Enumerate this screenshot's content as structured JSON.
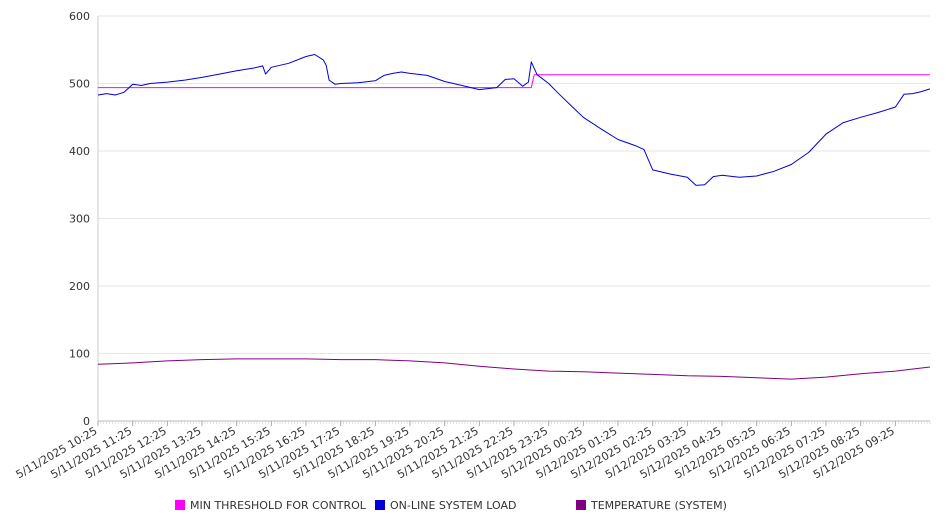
{
  "chart_data": {
    "type": "line",
    "title": "",
    "xlabel": "",
    "ylabel": "",
    "ylim": [
      0,
      600
    ],
    "yticks": [
      0,
      100,
      200,
      300,
      400,
      500,
      600
    ],
    "grid": true,
    "legend_position": "bottom",
    "x_tick_labels": [
      "5/11/2025 10:25",
      "5/11/2025 11:25",
      "5/11/2025 12:25",
      "5/11/2025 13:25",
      "5/11/2025 14:25",
      "5/11/2025 15:25",
      "5/11/2025 16:25",
      "5/11/2025 17:25",
      "5/11/2025 18:25",
      "5/11/2025 19:25",
      "5/11/2025 20:25",
      "5/11/2025 21:25",
      "5/11/2025 22:25",
      "5/11/2025 23:25",
      "5/12/2025 00:25",
      "5/12/2025 01:25",
      "5/12/2025 02:25",
      "5/12/2025 03:25",
      "5/12/2025 04:25",
      "5/12/2025 05:25",
      "5/12/2025 06:25",
      "5/12/2025 07:25",
      "5/12/2025 08:25",
      "5/12/2025 09:25"
    ],
    "series": [
      {
        "name": "MIN THRESHOLD FOR CONTROL",
        "color": "#ff00ff",
        "points": [
          {
            "t": "5/11/2025 10:25",
            "v": 494
          },
          {
            "t": "5/11/2025 11:25",
            "v": 494
          },
          {
            "t": "5/11/2025 12:25",
            "v": 494
          },
          {
            "t": "5/11/2025 13:25",
            "v": 494
          },
          {
            "t": "5/11/2025 14:25",
            "v": 494
          },
          {
            "t": "5/11/2025 15:25",
            "v": 494
          },
          {
            "t": "5/11/2025 16:25",
            "v": 494
          },
          {
            "t": "5/11/2025 17:25",
            "v": 494
          },
          {
            "t": "5/11/2025 18:25",
            "v": 494
          },
          {
            "t": "5/11/2025 19:25",
            "v": 494
          },
          {
            "t": "5/11/2025 20:25",
            "v": 494
          },
          {
            "t": "5/11/2025 21:25",
            "v": 494
          },
          {
            "t": "5/11/2025 22:25",
            "v": 494
          },
          {
            "t": "5/11/2025 22:55",
            "v": 494
          },
          {
            "t": "5/11/2025 23:00",
            "v": 513
          },
          {
            "t": "5/11/2025 23:25",
            "v": 513
          },
          {
            "t": "5/12/2025 00:25",
            "v": 513
          },
          {
            "t": "5/12/2025 01:25",
            "v": 513
          },
          {
            "t": "5/12/2025 02:25",
            "v": 513
          },
          {
            "t": "5/12/2025 03:25",
            "v": 513
          },
          {
            "t": "5/12/2025 04:25",
            "v": 513
          },
          {
            "t": "5/12/2025 05:25",
            "v": 513
          },
          {
            "t": "5/12/2025 06:25",
            "v": 513
          },
          {
            "t": "5/12/2025 07:25",
            "v": 513
          },
          {
            "t": "5/12/2025 08:25",
            "v": 513
          },
          {
            "t": "5/12/2025 09:25",
            "v": 513
          },
          {
            "t": "5/12/2025 10:25",
            "v": 513
          }
        ]
      },
      {
        "name": "ON-LINE SYSTEM LOAD",
        "color": "#0000dd",
        "points": [
          {
            "t": "5/11/2025 10:25",
            "v": 483
          },
          {
            "t": "5/11/2025 10:40",
            "v": 485
          },
          {
            "t": "5/11/2025 10:55",
            "v": 483
          },
          {
            "t": "5/11/2025 11:10",
            "v": 487
          },
          {
            "t": "5/11/2025 11:25",
            "v": 499
          },
          {
            "t": "5/11/2025 11:40",
            "v": 497
          },
          {
            "t": "5/11/2025 11:55",
            "v": 500
          },
          {
            "t": "5/11/2025 12:25",
            "v": 502
          },
          {
            "t": "5/11/2025 12:55",
            "v": 505
          },
          {
            "t": "5/11/2025 13:25",
            "v": 509
          },
          {
            "t": "5/11/2025 13:55",
            "v": 514
          },
          {
            "t": "5/11/2025 14:25",
            "v": 519
          },
          {
            "t": "5/11/2025 14:55",
            "v": 523
          },
          {
            "t": "5/11/2025 15:10",
            "v": 526
          },
          {
            "t": "5/11/2025 15:15",
            "v": 514
          },
          {
            "t": "5/11/2025 15:25",
            "v": 524
          },
          {
            "t": "5/11/2025 15:55",
            "v": 530
          },
          {
            "t": "5/11/2025 16:25",
            "v": 540
          },
          {
            "t": "5/11/2025 16:40",
            "v": 543
          },
          {
            "t": "5/11/2025 16:55",
            "v": 535
          },
          {
            "t": "5/11/2025 17:00",
            "v": 527
          },
          {
            "t": "5/11/2025 17:05",
            "v": 505
          },
          {
            "t": "5/11/2025 17:15",
            "v": 499
          },
          {
            "t": "5/11/2025 17:25",
            "v": 500
          },
          {
            "t": "5/11/2025 17:55",
            "v": 501
          },
          {
            "t": "5/11/2025 18:25",
            "v": 504
          },
          {
            "t": "5/11/2025 18:40",
            "v": 512
          },
          {
            "t": "5/11/2025 18:55",
            "v": 515
          },
          {
            "t": "5/11/2025 19:10",
            "v": 517
          },
          {
            "t": "5/11/2025 19:25",
            "v": 515
          },
          {
            "t": "5/11/2025 19:55",
            "v": 512
          },
          {
            "t": "5/11/2025 20:25",
            "v": 503
          },
          {
            "t": "5/11/2025 20:55",
            "v": 497
          },
          {
            "t": "5/11/2025 21:25",
            "v": 491
          },
          {
            "t": "5/11/2025 21:55",
            "v": 494
          },
          {
            "t": "5/11/2025 22:10",
            "v": 506
          },
          {
            "t": "5/11/2025 22:25",
            "v": 507
          },
          {
            "t": "5/11/2025 22:40",
            "v": 496
          },
          {
            "t": "5/11/2025 22:50",
            "v": 502
          },
          {
            "t": "5/11/2025 22:55",
            "v": 532
          },
          {
            "t": "5/11/2025 23:05",
            "v": 513
          },
          {
            "t": "5/11/2025 23:25",
            "v": 500
          },
          {
            "t": "5/11/2025 23:40",
            "v": 487
          },
          {
            "t": "5/12/2025 00:10",
            "v": 462
          },
          {
            "t": "5/12/2025 00:25",
            "v": 450
          },
          {
            "t": "5/12/2025 00:55",
            "v": 433
          },
          {
            "t": "5/12/2025 01:25",
            "v": 417
          },
          {
            "t": "5/12/2025 01:55",
            "v": 408
          },
          {
            "t": "5/12/2025 02:10",
            "v": 402
          },
          {
            "t": "5/12/2025 02:25",
            "v": 372
          },
          {
            "t": "5/12/2025 02:55",
            "v": 366
          },
          {
            "t": "5/12/2025 03:25",
            "v": 361
          },
          {
            "t": "5/12/2025 03:40",
            "v": 349
          },
          {
            "t": "5/12/2025 03:55",
            "v": 350
          },
          {
            "t": "5/12/2025 04:10",
            "v": 362
          },
          {
            "t": "5/12/2025 04:25",
            "v": 364
          },
          {
            "t": "5/12/2025 04:55",
            "v": 361
          },
          {
            "t": "5/12/2025 05:25",
            "v": 363
          },
          {
            "t": "5/12/2025 05:55",
            "v": 370
          },
          {
            "t": "5/12/2025 06:25",
            "v": 380
          },
          {
            "t": "5/12/2025 06:55",
            "v": 398
          },
          {
            "t": "5/12/2025 07:25",
            "v": 425
          },
          {
            "t": "5/12/2025 07:55",
            "v": 442
          },
          {
            "t": "5/12/2025 08:25",
            "v": 450
          },
          {
            "t": "5/12/2025 08:55",
            "v": 457
          },
          {
            "t": "5/12/2025 09:25",
            "v": 465
          },
          {
            "t": "5/12/2025 09:40",
            "v": 484
          },
          {
            "t": "5/12/2025 09:55",
            "v": 485
          },
          {
            "t": "5/12/2025 10:10",
            "v": 488
          },
          {
            "t": "5/12/2025 10:25",
            "v": 492
          }
        ]
      },
      {
        "name": "TEMPERATURE (SYSTEM)",
        "color": "#800080",
        "points": [
          {
            "t": "5/11/2025 10:25",
            "v": 84
          },
          {
            "t": "5/11/2025 11:25",
            "v": 86
          },
          {
            "t": "5/11/2025 12:25",
            "v": 89
          },
          {
            "t": "5/11/2025 13:25",
            "v": 91
          },
          {
            "t": "5/11/2025 14:25",
            "v": 92
          },
          {
            "t": "5/11/2025 15:25",
            "v": 92
          },
          {
            "t": "5/11/2025 16:25",
            "v": 92
          },
          {
            "t": "5/11/2025 17:25",
            "v": 91
          },
          {
            "t": "5/11/2025 18:25",
            "v": 91
          },
          {
            "t": "5/11/2025 19:25",
            "v": 89
          },
          {
            "t": "5/11/2025 20:25",
            "v": 86
          },
          {
            "t": "5/11/2025 21:25",
            "v": 81
          },
          {
            "t": "5/11/2025 22:25",
            "v": 77
          },
          {
            "t": "5/11/2025 23:25",
            "v": 74
          },
          {
            "t": "5/12/2025 00:25",
            "v": 73
          },
          {
            "t": "5/12/2025 01:25",
            "v": 71
          },
          {
            "t": "5/12/2025 02:25",
            "v": 69
          },
          {
            "t": "5/12/2025 03:25",
            "v": 67
          },
          {
            "t": "5/12/2025 04:25",
            "v": 66
          },
          {
            "t": "5/12/2025 05:25",
            "v": 64
          },
          {
            "t": "5/12/2025 06:25",
            "v": 62
          },
          {
            "t": "5/12/2025 07:25",
            "v": 65
          },
          {
            "t": "5/12/2025 08:25",
            "v": 70
          },
          {
            "t": "5/12/2025 09:25",
            "v": 74
          },
          {
            "t": "5/12/2025 10:25",
            "v": 80
          }
        ]
      }
    ]
  }
}
